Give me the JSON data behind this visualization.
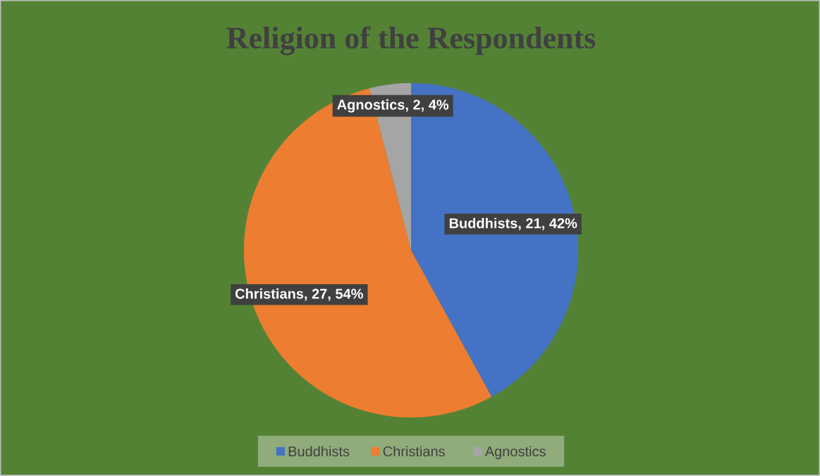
{
  "chart_data": {
    "type": "pie",
    "title": "Religion of the Respondents",
    "categories": [
      "Buddhists",
      "Christians",
      "Agnostics"
    ],
    "values": [
      21,
      27,
      2
    ],
    "colors": [
      "#4472c4",
      "#ed7d31",
      "#a5a5a5"
    ],
    "value_labels": [
      "Buddhists, 21, 42%",
      "Christians, 27, 54%",
      "Agnostics, 2, 4%"
    ],
    "legend": "bottom"
  }
}
